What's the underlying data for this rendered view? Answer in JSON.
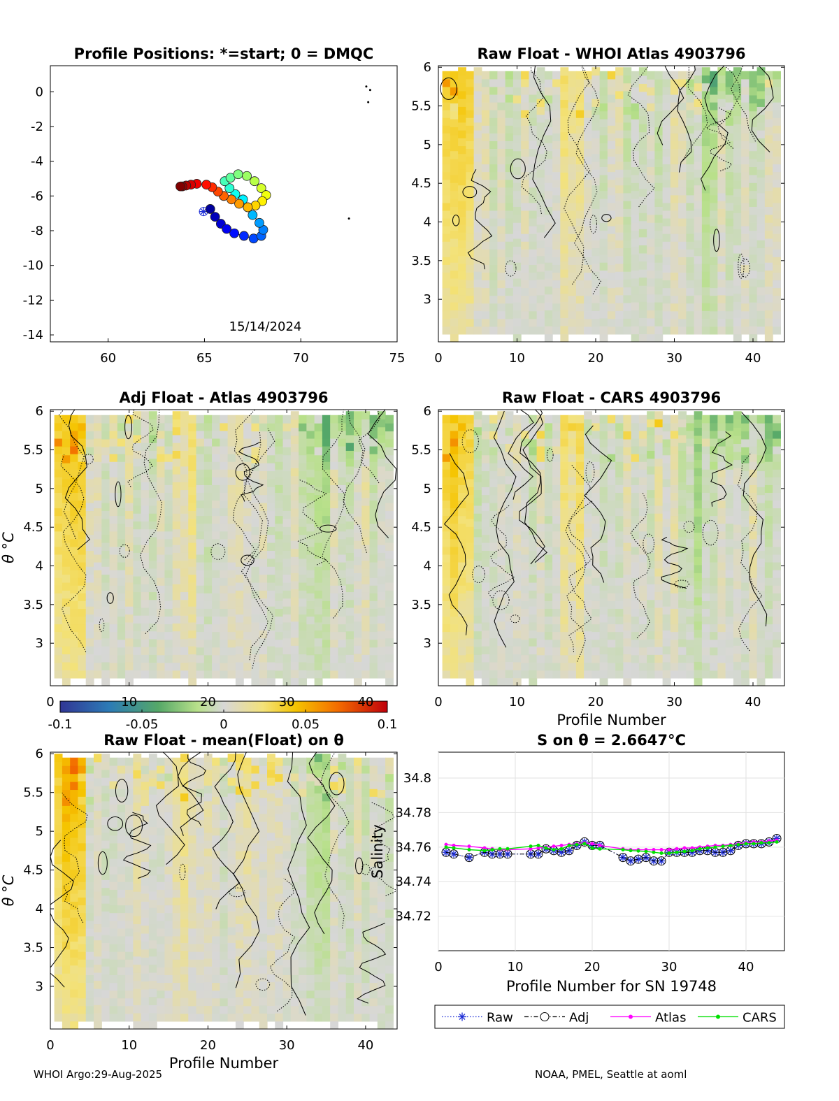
{
  "footer": {
    "left": "WHOI Argo:29-Aug-2025",
    "right": "NOAA, PMEL, Seattle at aoml"
  },
  "colors": {
    "raw": "#1f2fd6",
    "adj": "#000000",
    "atlas": "#ff00ff",
    "cars": "#00e000",
    "field_gray": "#d7d7d7"
  },
  "chart_data": [
    {
      "id": "positions",
      "type": "scatter",
      "title": "Profile Positions: *=start; 0 = DMQC",
      "xticks": [
        "60",
        "65",
        "70",
        "75"
      ],
      "yticks": [
        "0",
        "-2",
        "-4",
        "-6",
        "-8",
        "-10",
        "-12",
        "-14"
      ],
      "xlim": [
        57,
        75
      ],
      "ylim": [
        -14.4,
        1.5
      ],
      "date_label": "15/14/2024",
      "track_lon": [
        64.95,
        65.3,
        65.55,
        65.85,
        66.15,
        66.55,
        67.05,
        67.55,
        67.95,
        68.05,
        67.85,
        67.5,
        67.25,
        67.0,
        66.6,
        66.3,
        66.05,
        66.35,
        66.75,
        67.2,
        67.6,
        67.95,
        68.2,
        68.0,
        67.65,
        67.25,
        66.8,
        66.4,
        66.0,
        65.7,
        65.4,
        65.1,
        64.6,
        64.3,
        64.05,
        63.85,
        63.75
      ],
      "track_lat": [
        -6.9,
        -6.75,
        -7.2,
        -7.6,
        -7.9,
        -8.15,
        -8.3,
        -8.45,
        -8.3,
        -7.95,
        -7.55,
        -7.1,
        -6.65,
        -6.2,
        -5.9,
        -5.55,
        -5.15,
        -4.95,
        -4.75,
        -4.85,
        -5.15,
        -5.55,
        -5.95,
        -6.3,
        -6.55,
        -6.65,
        -6.45,
        -6.2,
        -6.0,
        -5.75,
        -5.5,
        -5.35,
        -5.3,
        -5.35,
        -5.4,
        -5.45,
        -5.45
      ],
      "islands": [
        [
          73.4,
          0.3
        ],
        [
          73.6,
          0.1
        ],
        [
          73.5,
          -0.6
        ],
        [
          72.5,
          -7.3
        ]
      ]
    },
    {
      "id": "raw_atlas",
      "type": "heatmap",
      "title": "Raw Float - WHOI Atlas  4903796",
      "xticks": [
        "0",
        "10",
        "20",
        "30",
        "40"
      ],
      "yticks": [
        "6",
        "5.5",
        "5",
        "4.5",
        "4",
        "3.5",
        "3"
      ],
      "xlim": [
        0,
        44
      ],
      "ylim": [
        2.45,
        6.02
      ],
      "xlabel": "",
      "ylabel": "",
      "n_profiles": 43,
      "seed": 11
    },
    {
      "id": "adj_atlas",
      "type": "heatmap",
      "title": "Adj Float - Atlas  4903796",
      "xticks": [
        "0",
        "10",
        "20",
        "30",
        "40"
      ],
      "yticks": [
        "6",
        "5.5",
        "5",
        "4.5",
        "4",
        "3.5",
        "3"
      ],
      "xlim": [
        0,
        44
      ],
      "ylim": [
        2.45,
        6.02
      ],
      "xlabel": "",
      "ylabel": "θ °C",
      "n_profiles": 43,
      "seed": 23
    },
    {
      "id": "raw_cars",
      "type": "heatmap",
      "title": "Raw Float - CARS  4903796",
      "xticks": [
        "0",
        "10",
        "20",
        "30",
        "40"
      ],
      "yticks": [
        "6",
        "5.5",
        "5",
        "4.5",
        "4",
        "3.5",
        "3"
      ],
      "xlim": [
        0,
        44
      ],
      "ylim": [
        2.45,
        6.02
      ],
      "xlabel": "Profile Number",
      "ylabel": "",
      "n_profiles": 43,
      "seed": 37
    },
    {
      "id": "raw_mean",
      "type": "heatmap",
      "title": "Raw Float - mean(Float) on θ",
      "xticks": [
        "0",
        "10",
        "20",
        "30",
        "40"
      ],
      "yticks": [
        "6",
        "5.5",
        "5",
        "4.5",
        "4",
        "3.5",
        "3"
      ],
      "xlim": [
        0,
        44
      ],
      "ylim": [
        2.45,
        6.02
      ],
      "xlabel": "Profile Number",
      "ylabel": "θ °C",
      "n_profiles": 43,
      "seed": 51
    },
    {
      "id": "colorbar",
      "type": "colorbar",
      "ticks": [
        "-0.1",
        "-0.05",
        "0",
        "0.05",
        "0.1"
      ],
      "clim": [
        -0.1,
        0.1
      ]
    },
    {
      "id": "salinity",
      "type": "line",
      "title": "S on θ = 2.6647°C",
      "xlabel": "Profile Number for SN 19748",
      "ylabel": "Salinity",
      "xticks": [
        "0",
        "10",
        "20",
        "30",
        "40"
      ],
      "yticks": [
        "34.8",
        "34.78",
        "34.76",
        "34.74",
        "34.72"
      ],
      "xlim": [
        0,
        45
      ],
      "ylim": [
        34.7,
        34.815
      ],
      "x": [
        1,
        2,
        4,
        6,
        7,
        8,
        9,
        12,
        13,
        14,
        15,
        16,
        17,
        18,
        19,
        20,
        21,
        24,
        25,
        26,
        27,
        28,
        29,
        30,
        31,
        32,
        33,
        34,
        35,
        36,
        37,
        38,
        39,
        40,
        41,
        42,
        43,
        44
      ],
      "series": [
        {
          "name": "Raw",
          "values": [
            34.757,
            34.756,
            34.754,
            34.757,
            34.756,
            34.756,
            34.756,
            34.756,
            34.756,
            34.759,
            34.758,
            34.757,
            34.758,
            34.761,
            34.763,
            34.761,
            34.761,
            34.754,
            34.752,
            34.753,
            34.754,
            34.752,
            34.752,
            34.757,
            34.757,
            34.757,
            34.757,
            34.758,
            34.758,
            34.757,
            34.757,
            34.758,
            34.761,
            34.762,
            34.762,
            34.762,
            34.763,
            34.765
          ]
        },
        {
          "name": "Adj",
          "values": [
            34.757,
            34.756,
            34.754,
            34.757,
            34.756,
            34.756,
            34.756,
            34.756,
            34.756,
            34.759,
            34.758,
            34.757,
            34.758,
            34.761,
            34.763,
            34.761,
            34.761,
            34.754,
            34.752,
            34.753,
            34.754,
            34.752,
            34.752,
            34.757,
            34.757,
            34.757,
            34.757,
            34.758,
            34.758,
            34.757,
            34.757,
            34.758,
            34.761,
            34.762,
            34.762,
            34.762,
            34.763,
            34.765
          ]
        },
        {
          "name": "Atlas",
          "values": [
            34.7615,
            34.761,
            34.7605,
            34.7595,
            34.759,
            34.7585,
            34.7585,
            34.759,
            34.7595,
            34.76,
            34.7605,
            34.761,
            34.7615,
            34.762,
            34.7625,
            34.762,
            34.761,
            34.759,
            34.7585,
            34.7585,
            34.7585,
            34.7585,
            34.7585,
            34.7585,
            34.759,
            34.7595,
            34.7595,
            34.76,
            34.7605,
            34.761,
            34.761,
            34.7615,
            34.762,
            34.7625,
            34.763,
            34.763,
            34.7635,
            34.764
          ]
        },
        {
          "name": "CARS",
          "values": [
            34.76,
            34.7595,
            34.7585,
            34.758,
            34.7585,
            34.759,
            34.759,
            34.7605,
            34.761,
            34.7595,
            34.7585,
            34.759,
            34.761,
            34.7615,
            34.762,
            34.7595,
            34.759,
            34.7585,
            34.758,
            34.7578,
            34.7575,
            34.757,
            34.7565,
            34.7565,
            34.757,
            34.7575,
            34.758,
            34.759,
            34.7595,
            34.76,
            34.7605,
            34.761,
            34.7615,
            34.762,
            34.762,
            34.7625,
            34.7625,
            34.763
          ]
        }
      ],
      "legend": [
        "Raw",
        "Adj",
        "Atlas",
        "CARS"
      ]
    }
  ]
}
